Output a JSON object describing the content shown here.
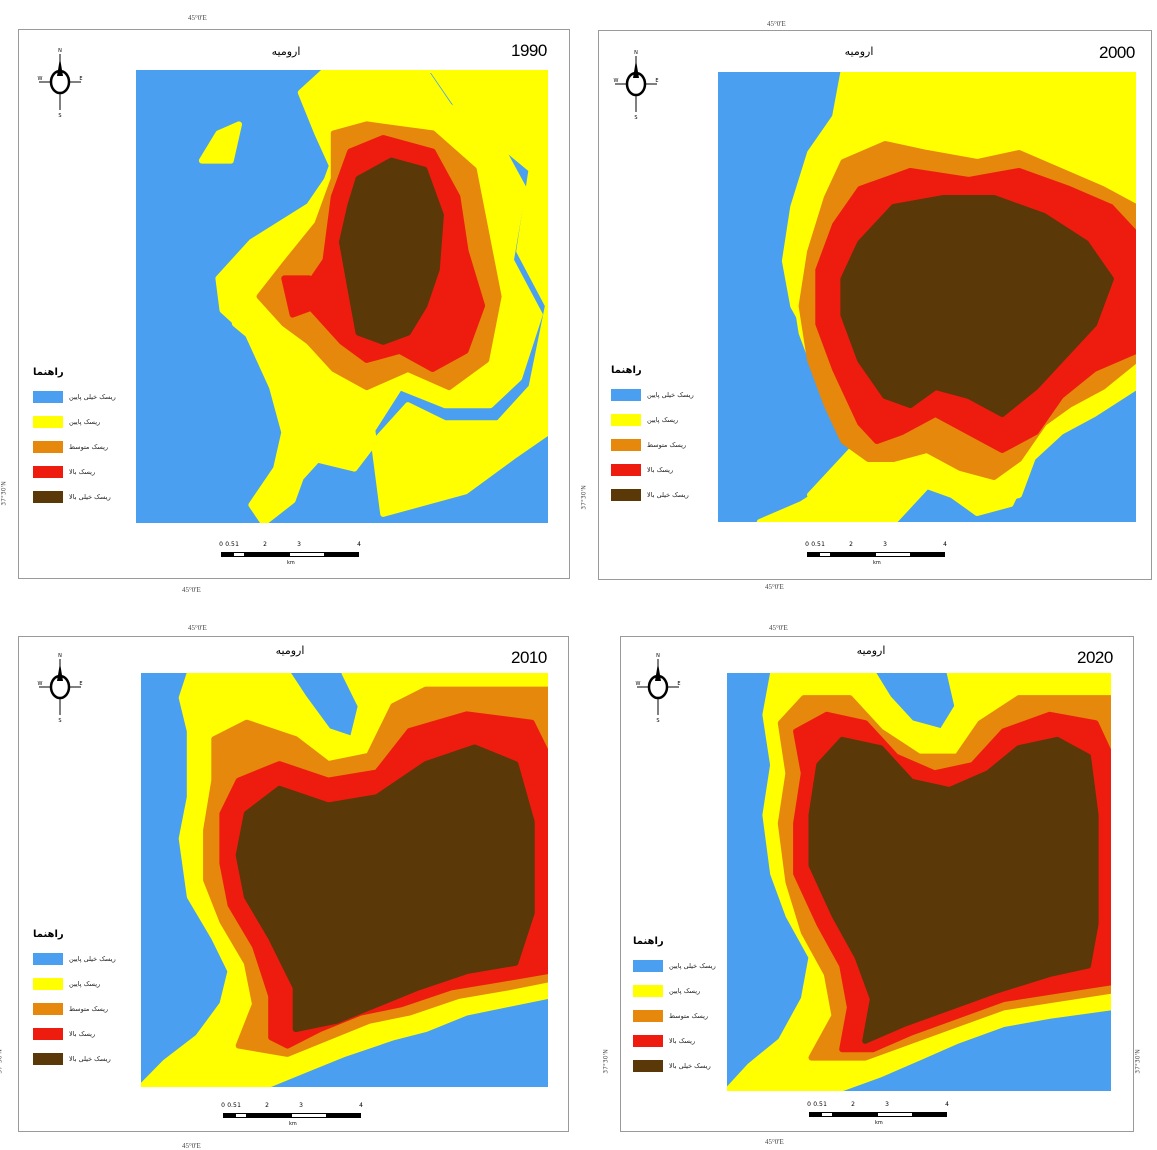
{
  "coords": {
    "top_left": "45°0'E",
    "top_right": "45°0'E",
    "mid_left": "45°0'E",
    "mid_right": "45°0'E",
    "mid_left_b": "45°0'E",
    "mid_right_b": "45°0'E",
    "bottom_left": "45°0'E",
    "bottom_right": "45°0'E",
    "side_lat": "37°30'N"
  },
  "colors": {
    "very_low": "#4a9ff0",
    "low": "#ffff00",
    "medium": "#e5880c",
    "high": "#ee1c0e",
    "very_high": "#5a3808"
  },
  "legend": {
    "title": "راهنما",
    "items": [
      {
        "label": "ریسک خیلی پایین",
        "color": "#4a9ff0"
      },
      {
        "label": "ریسک پایین",
        "color": "#ffff00"
      },
      {
        "label": "ریسک متوسط",
        "color": "#e5880c"
      },
      {
        "label": "ریسک بالا",
        "color": "#ee1c0e"
      },
      {
        "label": "ریسک خیلی بالا",
        "color": "#5a3808"
      }
    ]
  },
  "compass": {
    "n": "N",
    "s": "S",
    "e": "E",
    "w": "W"
  },
  "scalebar": {
    "ticks": [
      "0",
      "0.5",
      "1",
      "2",
      "3",
      "4"
    ],
    "unit": "km"
  },
  "panels": [
    {
      "year": "1990",
      "city": "ارومیه"
    },
    {
      "year": "2000",
      "city": "ارومیه"
    },
    {
      "year": "2010",
      "city": "ارومیه"
    },
    {
      "year": "2020",
      "city": "ارومیه"
    }
  ]
}
